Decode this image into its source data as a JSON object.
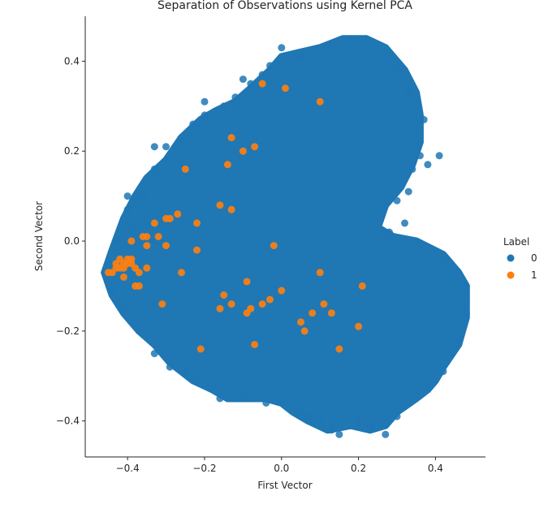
{
  "chart_data": {
    "type": "scatter",
    "title": "Separation of Observations using Kernel PCA",
    "xlabel": "First Vector",
    "ylabel": "Second Vector",
    "xlim": [
      -0.51,
      0.53
    ],
    "ylim": [
      -0.48,
      0.5
    ],
    "xticks": [
      -0.4,
      -0.2,
      0.0,
      0.2,
      0.4
    ],
    "xtick_labels": [
      "−0.4",
      "−0.2",
      "0.0",
      "0.2",
      "0.4"
    ],
    "yticks": [
      -0.4,
      -0.2,
      0.0,
      0.2,
      0.4
    ],
    "ytick_labels": [
      "−0.4",
      "−0.2",
      "0.0",
      "0.2",
      "0.4"
    ],
    "grid": false,
    "legend_title": "Label",
    "legend_placement": "right",
    "series": [
      {
        "name": "0",
        "color": "#1f77b4",
        "region_outline": [
          [
            -0.46,
            -0.07
          ],
          [
            -0.44,
            -0.02
          ],
          [
            -0.41,
            0.05
          ],
          [
            -0.38,
            0.1
          ],
          [
            -0.35,
            0.14
          ],
          [
            -0.3,
            0.18
          ],
          [
            -0.26,
            0.23
          ],
          [
            -0.21,
            0.27
          ],
          [
            -0.17,
            0.29
          ],
          [
            -0.12,
            0.31
          ],
          [
            -0.08,
            0.34
          ],
          [
            -0.03,
            0.38
          ],
          [
            0.0,
            0.41
          ],
          [
            0.05,
            0.42
          ],
          [
            0.1,
            0.43
          ],
          [
            0.16,
            0.45
          ],
          [
            0.22,
            0.45
          ],
          [
            0.27,
            0.43
          ],
          [
            0.32,
            0.38
          ],
          [
            0.35,
            0.33
          ],
          [
            0.36,
            0.28
          ],
          [
            0.36,
            0.22
          ],
          [
            0.34,
            0.17
          ],
          [
            0.31,
            0.12
          ],
          [
            0.27,
            0.08
          ],
          [
            0.25,
            0.03
          ],
          [
            0.29,
            0.01
          ],
          [
            0.35,
            0.0
          ],
          [
            0.42,
            -0.03
          ],
          [
            0.46,
            -0.07
          ],
          [
            0.48,
            -0.1
          ],
          [
            0.48,
            -0.17
          ],
          [
            0.46,
            -0.23
          ],
          [
            0.42,
            -0.28
          ],
          [
            0.4,
            -0.31
          ],
          [
            0.38,
            -0.33
          ],
          [
            0.35,
            -0.35
          ],
          [
            0.3,
            -0.38
          ],
          [
            0.27,
            -0.41
          ],
          [
            0.23,
            -0.42
          ],
          [
            0.18,
            -0.41
          ],
          [
            0.12,
            -0.42
          ],
          [
            0.07,
            -0.4
          ],
          [
            0.03,
            -0.38
          ],
          [
            0.0,
            -0.36
          ],
          [
            -0.04,
            -0.35
          ],
          [
            -0.1,
            -0.35
          ],
          [
            -0.14,
            -0.35
          ],
          [
            -0.18,
            -0.33
          ],
          [
            -0.23,
            -0.31
          ],
          [
            -0.29,
            -0.27
          ],
          [
            -0.33,
            -0.23
          ],
          [
            -0.37,
            -0.2
          ],
          [
            -0.41,
            -0.16
          ],
          [
            -0.44,
            -0.12
          ]
        ],
        "points": [
          [
            -0.3,
            0.21
          ],
          [
            -0.2,
            0.31
          ],
          [
            -0.1,
            0.36
          ],
          [
            0.0,
            0.43
          ],
          [
            0.05,
            0.41
          ],
          [
            0.12,
            0.43
          ],
          [
            0.18,
            0.45
          ],
          [
            0.22,
            0.45
          ],
          [
            0.3,
            0.38
          ],
          [
            0.33,
            0.33
          ],
          [
            0.37,
            0.27
          ],
          [
            0.41,
            0.19
          ],
          [
            0.38,
            0.17
          ],
          [
            0.36,
            0.19
          ],
          [
            0.27,
            0.08
          ],
          [
            0.42,
            -0.04
          ],
          [
            0.45,
            -0.07
          ],
          [
            0.48,
            -0.1
          ],
          [
            0.48,
            -0.16
          ],
          [
            0.46,
            -0.23
          ],
          [
            0.42,
            -0.29
          ],
          [
            0.38,
            -0.32
          ],
          [
            0.35,
            -0.34
          ],
          [
            0.3,
            -0.39
          ],
          [
            0.27,
            -0.43
          ],
          [
            0.23,
            -0.41
          ],
          [
            0.2,
            -0.4
          ],
          [
            0.15,
            -0.43
          ],
          [
            0.13,
            -0.42
          ],
          [
            0.1,
            -0.4
          ],
          [
            0.07,
            -0.39
          ],
          [
            0.05,
            -0.38
          ],
          [
            0.0,
            -0.36
          ],
          [
            -0.04,
            -0.36
          ],
          [
            -0.1,
            -0.35
          ],
          [
            -0.16,
            -0.35
          ],
          [
            -0.22,
            -0.31
          ],
          [
            -0.25,
            -0.29
          ],
          [
            -0.29,
            -0.28
          ],
          [
            -0.33,
            -0.25
          ],
          [
            -0.37,
            -0.2
          ],
          [
            -0.41,
            -0.15
          ],
          [
            -0.44,
            -0.11
          ],
          [
            -0.46,
            -0.07
          ],
          [
            -0.43,
            0.0
          ],
          [
            -0.4,
            0.07
          ],
          [
            -0.4,
            0.1
          ],
          [
            -0.37,
            0.1
          ],
          [
            -0.33,
            0.16
          ],
          [
            -0.29,
            0.18
          ],
          [
            -0.26,
            0.23
          ],
          [
            -0.23,
            0.26
          ],
          [
            -0.2,
            0.28
          ],
          [
            -0.15,
            0.3
          ],
          [
            -0.12,
            0.32
          ],
          [
            -0.08,
            0.35
          ],
          [
            -0.05,
            0.37
          ],
          [
            -0.03,
            0.39
          ],
          [
            0.34,
            0.16
          ],
          [
            0.33,
            0.11
          ],
          [
            0.3,
            0.09
          ],
          [
            0.32,
            0.04
          ],
          [
            0.28,
            0.02
          ],
          [
            0.35,
            0.0
          ],
          [
            -0.33,
            0.21
          ],
          [
            -0.36,
            0.1
          ],
          [
            -0.39,
            0.03
          ]
        ]
      },
      {
        "name": "1",
        "color": "#ff7f0e",
        "points": [
          [
            -0.45,
            -0.07
          ],
          [
            -0.44,
            -0.07
          ],
          [
            -0.43,
            -0.06
          ],
          [
            -0.43,
            -0.05
          ],
          [
            -0.42,
            -0.06
          ],
          [
            -0.42,
            -0.04
          ],
          [
            -0.41,
            -0.06
          ],
          [
            -0.41,
            -0.05
          ],
          [
            -0.41,
            -0.08
          ],
          [
            -0.4,
            -0.04
          ],
          [
            -0.4,
            -0.05
          ],
          [
            -0.39,
            -0.04
          ],
          [
            -0.39,
            -0.05
          ],
          [
            -0.39,
            0.0
          ],
          [
            -0.38,
            -0.1
          ],
          [
            -0.38,
            -0.06
          ],
          [
            -0.37,
            -0.07
          ],
          [
            -0.37,
            -0.1
          ],
          [
            -0.36,
            0.01
          ],
          [
            -0.35,
            0.01
          ],
          [
            -0.35,
            -0.01
          ],
          [
            -0.35,
            -0.06
          ],
          [
            -0.33,
            0.04
          ],
          [
            -0.32,
            0.01
          ],
          [
            -0.31,
            -0.14
          ],
          [
            -0.3,
            0.05
          ],
          [
            -0.3,
            -0.01
          ],
          [
            -0.29,
            0.05
          ],
          [
            -0.27,
            0.06
          ],
          [
            -0.26,
            -0.07
          ],
          [
            -0.25,
            0.16
          ],
          [
            -0.22,
            -0.02
          ],
          [
            -0.22,
            0.04
          ],
          [
            -0.21,
            -0.24
          ],
          [
            -0.16,
            0.08
          ],
          [
            -0.16,
            -0.15
          ],
          [
            -0.15,
            -0.12
          ],
          [
            -0.14,
            0.17
          ],
          [
            -0.13,
            0.07
          ],
          [
            -0.13,
            -0.14
          ],
          [
            -0.13,
            0.23
          ],
          [
            -0.1,
            0.2
          ],
          [
            -0.09,
            -0.09
          ],
          [
            -0.09,
            -0.16
          ],
          [
            -0.08,
            -0.15
          ],
          [
            -0.07,
            0.21
          ],
          [
            -0.07,
            -0.23
          ],
          [
            -0.05,
            0.35
          ],
          [
            -0.05,
            -0.14
          ],
          [
            -0.03,
            -0.13
          ],
          [
            -0.02,
            -0.01
          ],
          [
            0.0,
            -0.11
          ],
          [
            0.01,
            0.34
          ],
          [
            0.05,
            -0.18
          ],
          [
            0.06,
            -0.2
          ],
          [
            0.08,
            -0.16
          ],
          [
            0.1,
            -0.07
          ],
          [
            0.1,
            0.31
          ],
          [
            0.11,
            -0.14
          ],
          [
            0.13,
            -0.16
          ],
          [
            0.15,
            -0.24
          ],
          [
            0.2,
            -0.19
          ],
          [
            0.21,
            -0.1
          ]
        ]
      }
    ]
  }
}
